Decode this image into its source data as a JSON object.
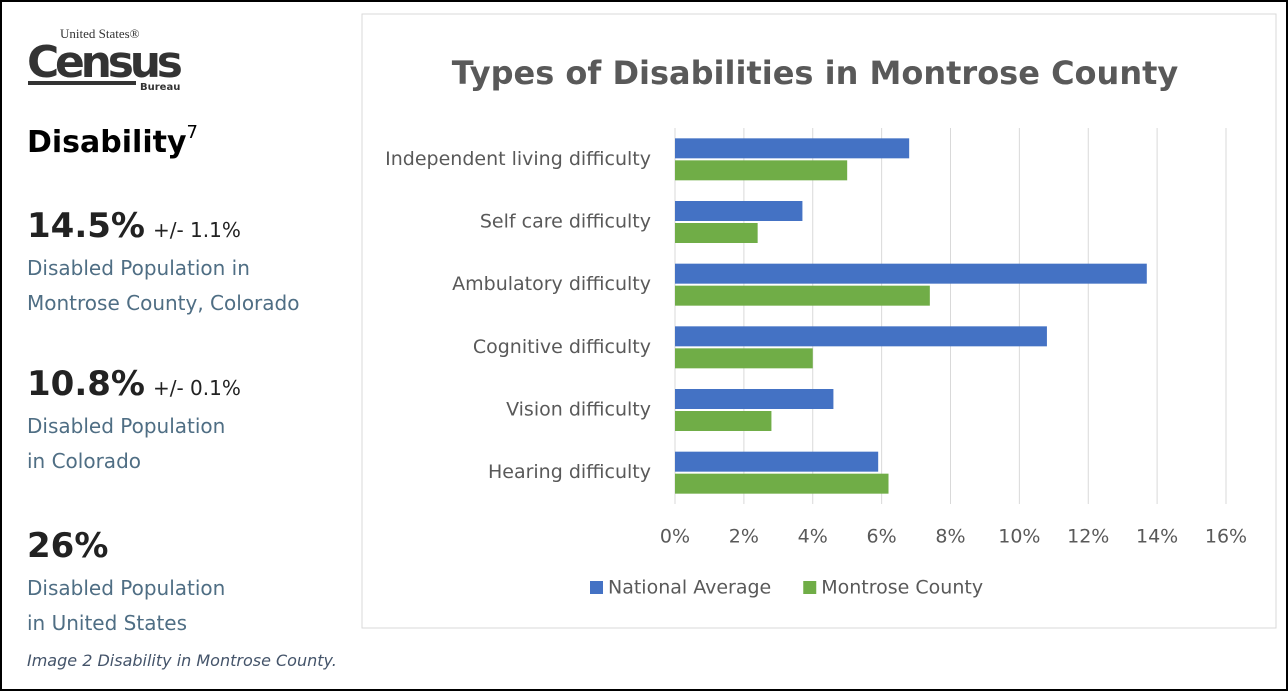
{
  "logo": {
    "top": "United States®",
    "name": "Census",
    "bottom": "Bureau"
  },
  "sidebar": {
    "heading": "Disability",
    "heading_note": "7",
    "stats": [
      {
        "value": "14.5%",
        "margin": "+/- 1.1%",
        "label": [
          "Disabled Population in",
          "Montrose County, Colorado"
        ]
      },
      {
        "value": "10.8%",
        "margin": "+/- 0.1%",
        "label": [
          "Disabled Population",
          "in Colorado"
        ]
      },
      {
        "value": "26%",
        "label": [
          "Disabled Population",
          "in United States"
        ]
      }
    ]
  },
  "caption": "Image 2 Disability in Montrose County.",
  "chart_data": {
    "type": "bar",
    "orientation": "horizontal",
    "title": "Types of Disabilities in Montrose County",
    "categories": [
      "Independent living difficulty",
      "Self care difficulty",
      "Ambulatory difficulty",
      "Cognitive difficulty",
      "Vision difficulty",
      "Hearing difficulty"
    ],
    "series": [
      {
        "name": "National Average",
        "color": "#4472c4",
        "values": [
          6.8,
          3.7,
          13.7,
          10.8,
          4.6,
          5.9
        ]
      },
      {
        "name": "Montrose County",
        "color": "#70ad47",
        "values": [
          5.0,
          2.4,
          7.4,
          4.0,
          2.8,
          6.2
        ]
      }
    ],
    "xlim": [
      0,
      16
    ],
    "xticks": [
      {
        "value": 0,
        "label": "0%"
      },
      {
        "value": 2,
        "label": "2%"
      },
      {
        "value": 4,
        "label": "4%"
      },
      {
        "value": 6,
        "label": "6%"
      },
      {
        "value": 8,
        "label": "8%"
      },
      {
        "value": 10,
        "label": "10%"
      },
      {
        "value": 12,
        "label": "12%"
      },
      {
        "value": 14,
        "label": "14%"
      },
      {
        "value": 16,
        "label": "16%"
      }
    ],
    "grid": true,
    "legend": "bottom"
  }
}
